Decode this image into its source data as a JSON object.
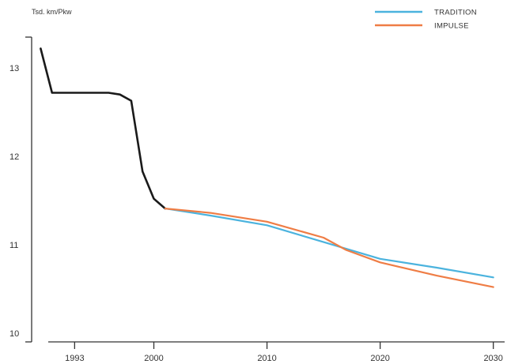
{
  "chart_data": {
    "type": "line",
    "title": "",
    "ylabel": "Tsd. km/Pkw",
    "xlabel": "",
    "xlim": [
      1989.2,
      2031
    ],
    "ylim": [
      9.9,
      13.35
    ],
    "x_ticks": [
      1993,
      2000,
      2010,
      2020,
      2030
    ],
    "y_ticks": [
      10,
      11,
      12,
      13
    ],
    "grid": false,
    "legend_position": "top-right",
    "colors": {
      "history": "#1a1a1a",
      "tradition": "#4bb3de",
      "impulse": "#ef7d45",
      "axis": "#333333"
    },
    "series": [
      {
        "key": "history",
        "name": "",
        "points": [
          [
            1990,
            13.22
          ],
          [
            1991,
            12.72
          ],
          [
            1993,
            12.72
          ],
          [
            1995,
            12.72
          ],
          [
            1996,
            12.72
          ],
          [
            1997,
            12.7
          ],
          [
            1998,
            12.63
          ],
          [
            1999,
            11.83
          ],
          [
            2000,
            11.52
          ],
          [
            2001,
            11.41
          ]
        ]
      },
      {
        "key": "tradition",
        "name": "TRADITION",
        "points": [
          [
            2001,
            11.41
          ],
          [
            2005,
            11.33
          ],
          [
            2010,
            11.22
          ],
          [
            2015,
            11.03
          ],
          [
            2020,
            10.84
          ],
          [
            2025,
            10.74
          ],
          [
            2030,
            10.63
          ]
        ]
      },
      {
        "key": "impulse",
        "name": "IMPULSE",
        "points": [
          [
            2001,
            11.41
          ],
          [
            2005,
            11.36
          ],
          [
            2010,
            11.26
          ],
          [
            2015,
            11.08
          ],
          [
            2017,
            10.94
          ],
          [
            2020,
            10.8
          ],
          [
            2025,
            10.65
          ],
          [
            2030,
            10.52
          ]
        ]
      }
    ],
    "legend": [
      {
        "key": "tradition",
        "label": "TRADITION"
      },
      {
        "key": "impulse",
        "label": "IMPULSE"
      }
    ]
  }
}
